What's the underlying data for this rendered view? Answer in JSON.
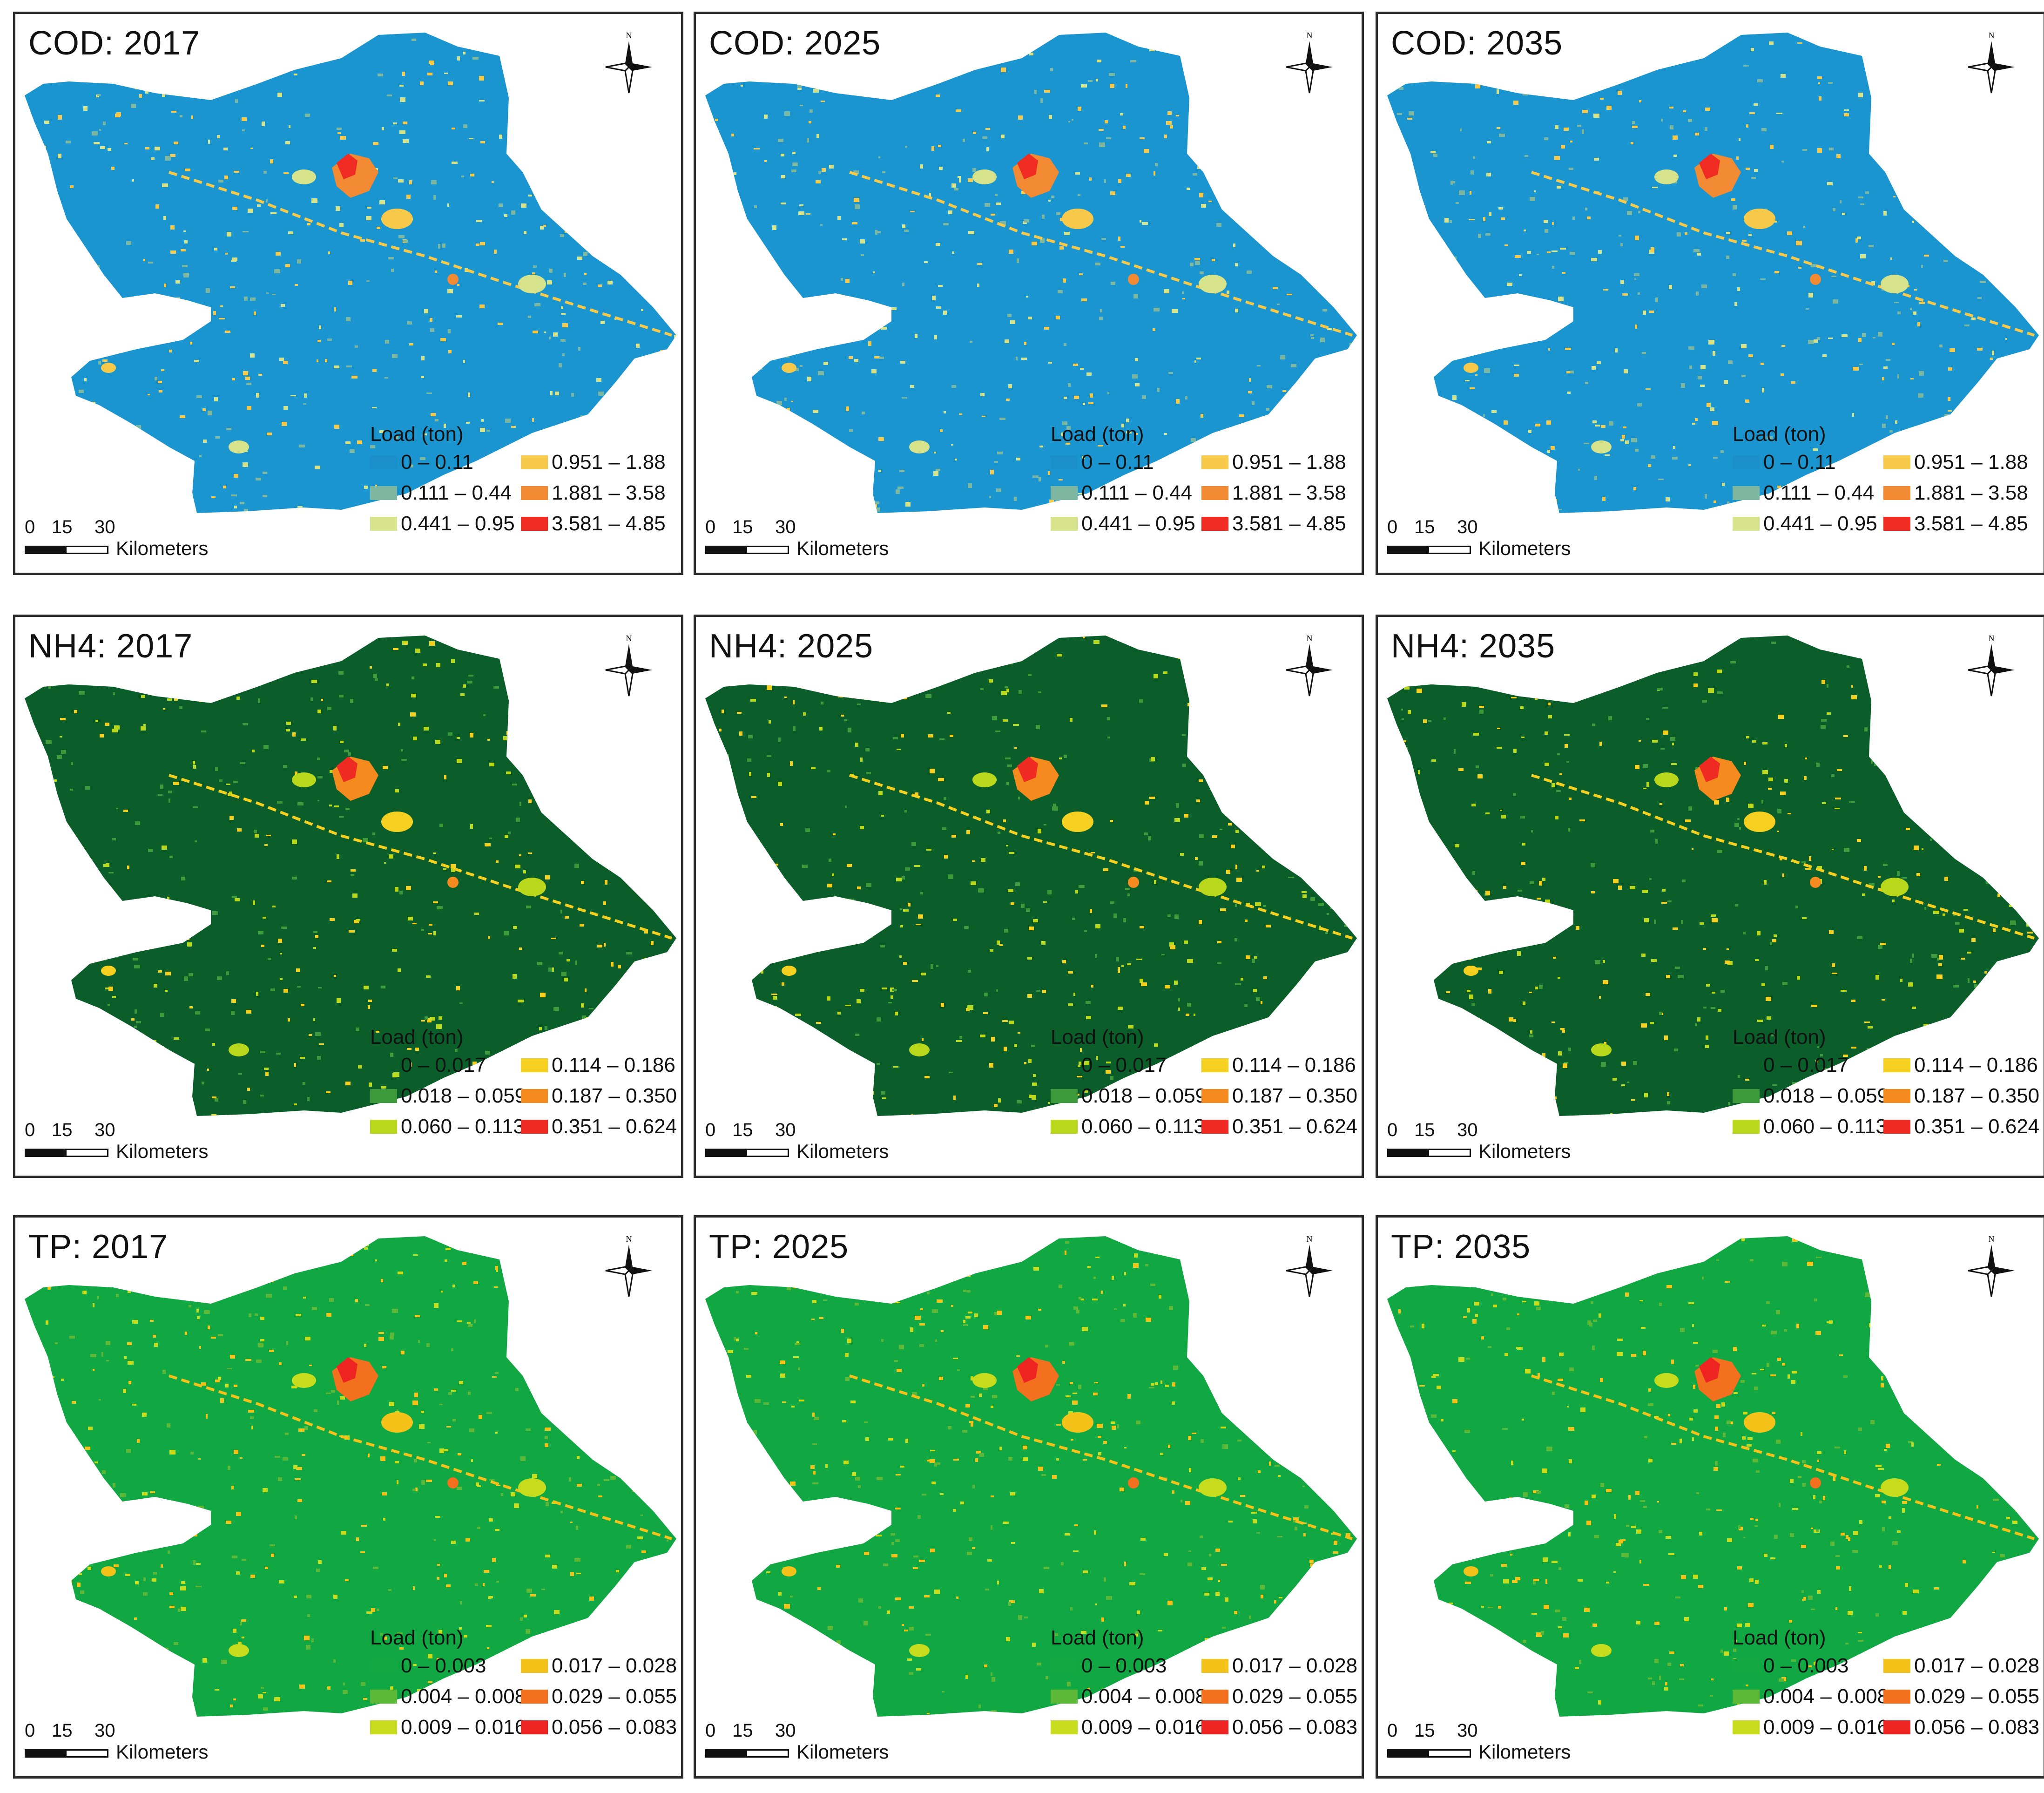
{
  "legend_title": "Load (ton)",
  "scale": {
    "ticks": [
      "0",
      "15",
      "30"
    ],
    "unit": "Kilometers"
  },
  "north_label": "N",
  "rows": [
    {
      "variable": "COD",
      "base_color": "#1b95cf",
      "legend": [
        {
          "label": "0 – 0.11",
          "color": "#1b8fc9"
        },
        {
          "label": "0.951 – 1.88",
          "color": "#f6c94b"
        },
        {
          "label": "0.111 – 0.44",
          "color": "#7db7a0"
        },
        {
          "label": "1.881 – 3.58",
          "color": "#f28a33"
        },
        {
          "label": "0.441 – 0.95",
          "color": "#d7e38a"
        },
        {
          "label": "3.581 – 4.85",
          "color": "#ef2b22"
        }
      ],
      "panels": [
        {
          "title": "COD: 2017"
        },
        {
          "title": "COD: 2025"
        },
        {
          "title": "COD: 2035"
        }
      ]
    },
    {
      "variable": "NH4",
      "base_color": "#0b5e2a",
      "legend": [
        {
          "label": "0 – 0.017",
          "color": "#0b5e2a"
        },
        {
          "label": "0.114 – 0.186",
          "color": "#f5d020"
        },
        {
          "label": "0.018 – 0.059",
          "color": "#3d9a3a"
        },
        {
          "label": "0.187 – 0.350",
          "color": "#f58a1f"
        },
        {
          "label": "0.060 – 0.113",
          "color": "#b9d81c"
        },
        {
          "label": "0.351 – 0.624",
          "color": "#ee2a22"
        }
      ],
      "panels": [
        {
          "title": "NH4: 2017"
        },
        {
          "title": "NH4: 2025"
        },
        {
          "title": "NH4: 2035"
        }
      ]
    },
    {
      "variable": "TP",
      "base_color": "#11a844",
      "legend": [
        {
          "label": "0 – 0.003",
          "color": "#14a843"
        },
        {
          "label": "0.017 – 0.028",
          "color": "#f5c21a"
        },
        {
          "label": "0.004 – 0.008",
          "color": "#5cb836"
        },
        {
          "label": "0.029 – 0.055",
          "color": "#f2701e"
        },
        {
          "label": "0.009 – 0.016",
          "color": "#c6dc1d"
        },
        {
          "label": "0.056 – 0.083",
          "color": "#ee2422"
        }
      ],
      "panels": [
        {
          "title": "TP: 2017"
        },
        {
          "title": "TP: 2025"
        },
        {
          "title": "TP: 2035"
        }
      ]
    }
  ]
}
